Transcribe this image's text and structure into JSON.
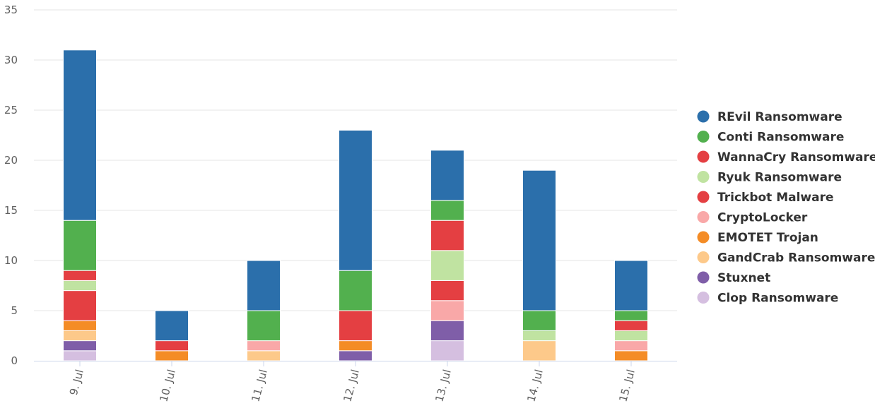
{
  "chart_data": {
    "type": "bar",
    "stacked": true,
    "title": "",
    "xlabel": "",
    "ylabel": "",
    "ylim": [
      0,
      35
    ],
    "y_ticks": [
      0,
      5,
      10,
      15,
      20,
      25,
      30,
      35
    ],
    "grid": true,
    "legend_position": "right",
    "categories": [
      "9. Jul",
      "10. Jul",
      "11. Jul",
      "12. Jul",
      "13. Jul",
      "14. Jul",
      "15. Jul"
    ],
    "series": [
      {
        "name": "Clop Ransomware",
        "color": "#d5bfe0",
        "values": [
          1,
          0,
          0,
          0,
          2,
          0,
          0
        ]
      },
      {
        "name": "Stuxnet",
        "color": "#7f5ea8",
        "values": [
          1,
          0,
          0,
          1,
          2,
          0,
          0
        ]
      },
      {
        "name": "GandCrab Ransomware",
        "color": "#fdc98a",
        "values": [
          1,
          0,
          1,
          0,
          0,
          2,
          0
        ]
      },
      {
        "name": "EMOTET Trojan",
        "color": "#f48c26",
        "values": [
          1,
          1,
          0,
          1,
          0,
          0,
          1
        ]
      },
      {
        "name": "CryptoLocker",
        "color": "#f9a8a8",
        "values": [
          0,
          0,
          1,
          0,
          2,
          0,
          1
        ]
      },
      {
        "name": "Trickbot Malware",
        "color": "#e43f42",
        "values": [
          3,
          0,
          0,
          3,
          2,
          0,
          0
        ]
      },
      {
        "name": "Ryuk Ransomware",
        "color": "#c0e3a1",
        "values": [
          1,
          0,
          0,
          0,
          3,
          1,
          1
        ]
      },
      {
        "name": "WannaCry Ransomware",
        "color": "#e43f42",
        "values": [
          1,
          1,
          0,
          0,
          3,
          0,
          1
        ]
      },
      {
        "name": "Conti Ransomware",
        "color": "#52b04e",
        "values": [
          5,
          0,
          3,
          4,
          2,
          2,
          1
        ]
      },
      {
        "name": "REvil Ransomware",
        "color": "#2b6fab",
        "values": [
          17,
          3,
          5,
          14,
          5,
          14,
          5
        ]
      }
    ]
  }
}
